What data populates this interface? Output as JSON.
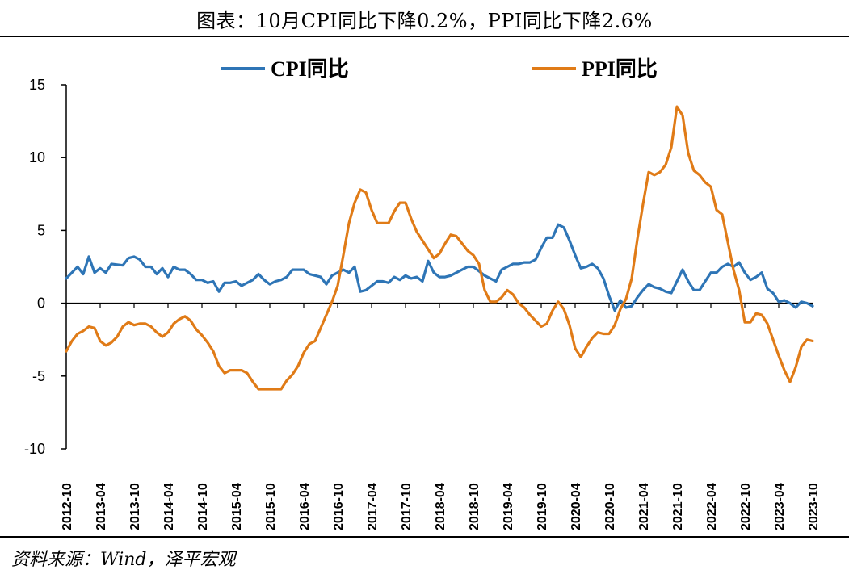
{
  "title": "图表：10月CPI同比下降0.2%，PPI同比下降2.6%",
  "source": "资料来源：Wind，泽平宏观",
  "colors": {
    "cpi": "#2e75b6",
    "ppi": "#e07b17"
  },
  "chart_data": {
    "type": "line",
    "title": "图表：10月CPI同比下降0.2%，PPI同比下降2.6%",
    "xlabel": "",
    "ylabel": "",
    "ylim": [
      -10,
      15
    ],
    "yticks": [
      15,
      10,
      5,
      0,
      -5,
      -10
    ],
    "grid": false,
    "legend": "top",
    "x_start": "2012-10",
    "x_end": "2023-10",
    "x_tick_labels": [
      "2012-10",
      "2013-04",
      "2013-10",
      "2014-04",
      "2014-10",
      "2015-04",
      "2015-10",
      "2016-04",
      "2016-10",
      "2017-04",
      "2017-10",
      "2018-04",
      "2018-10",
      "2019-04",
      "2019-10",
      "2020-04",
      "2020-10",
      "2021-04",
      "2021-10",
      "2022-04",
      "2022-10",
      "2023-04",
      "2023-10"
    ],
    "series": [
      {
        "name": "CPI同比",
        "color": "#2e75b6",
        "points": [
          [
            "2012-10",
            1.7
          ],
          [
            "2012-12",
            2.5
          ],
          [
            "2013-01",
            2.0
          ],
          [
            "2013-02",
            3.2
          ],
          [
            "2013-03",
            2.1
          ],
          [
            "2013-04",
            2.4
          ],
          [
            "2013-05",
            2.1
          ],
          [
            "2013-06",
            2.7
          ],
          [
            "2013-08",
            2.6
          ],
          [
            "2013-09",
            3.1
          ],
          [
            "2013-10",
            3.2
          ],
          [
            "2013-11",
            3.0
          ],
          [
            "2013-12",
            2.5
          ],
          [
            "2014-01",
            2.5
          ],
          [
            "2014-02",
            2.0
          ],
          [
            "2014-03",
            2.4
          ],
          [
            "2014-04",
            1.8
          ],
          [
            "2014-05",
            2.5
          ],
          [
            "2014-06",
            2.3
          ],
          [
            "2014-07",
            2.3
          ],
          [
            "2014-08",
            2.0
          ],
          [
            "2014-09",
            1.6
          ],
          [
            "2014-10",
            1.6
          ],
          [
            "2014-11",
            1.4
          ],
          [
            "2014-12",
            1.5
          ],
          [
            "2015-01",
            0.8
          ],
          [
            "2015-02",
            1.4
          ],
          [
            "2015-03",
            1.4
          ],
          [
            "2015-04",
            1.5
          ],
          [
            "2015-05",
            1.2
          ],
          [
            "2015-06",
            1.4
          ],
          [
            "2015-07",
            1.6
          ],
          [
            "2015-08",
            2.0
          ],
          [
            "2015-09",
            1.6
          ],
          [
            "2015-10",
            1.3
          ],
          [
            "2015-11",
            1.5
          ],
          [
            "2015-12",
            1.6
          ],
          [
            "2016-01",
            1.8
          ],
          [
            "2016-02",
            2.3
          ],
          [
            "2016-03",
            2.3
          ],
          [
            "2016-04",
            2.3
          ],
          [
            "2016-05",
            2.0
          ],
          [
            "2016-06",
            1.9
          ],
          [
            "2016-07",
            1.8
          ],
          [
            "2016-08",
            1.3
          ],
          [
            "2016-09",
            1.9
          ],
          [
            "2016-10",
            2.1
          ],
          [
            "2016-11",
            2.3
          ],
          [
            "2016-12",
            2.1
          ],
          [
            "2017-01",
            2.5
          ],
          [
            "2017-02",
            0.8
          ],
          [
            "2017-03",
            0.9
          ],
          [
            "2017-04",
            1.2
          ],
          [
            "2017-05",
            1.5
          ],
          [
            "2017-06",
            1.5
          ],
          [
            "2017-07",
            1.4
          ],
          [
            "2017-08",
            1.8
          ],
          [
            "2017-09",
            1.6
          ],
          [
            "2017-10",
            1.9
          ],
          [
            "2017-11",
            1.7
          ],
          [
            "2017-12",
            1.8
          ],
          [
            "2018-01",
            1.5
          ],
          [
            "2018-02",
            2.9
          ],
          [
            "2018-03",
            2.1
          ],
          [
            "2018-04",
            1.8
          ],
          [
            "2018-05",
            1.8
          ],
          [
            "2018-06",
            1.9
          ],
          [
            "2018-07",
            2.1
          ],
          [
            "2018-08",
            2.3
          ],
          [
            "2018-09",
            2.5
          ],
          [
            "2018-10",
            2.5
          ],
          [
            "2018-11",
            2.2
          ],
          [
            "2018-12",
            1.9
          ],
          [
            "2019-01",
            1.7
          ],
          [
            "2019-02",
            1.5
          ],
          [
            "2019-03",
            2.3
          ],
          [
            "2019-04",
            2.5
          ],
          [
            "2019-05",
            2.7
          ],
          [
            "2019-06",
            2.7
          ],
          [
            "2019-07",
            2.8
          ],
          [
            "2019-08",
            2.8
          ],
          [
            "2019-09",
            3.0
          ],
          [
            "2019-10",
            3.8
          ],
          [
            "2019-11",
            4.5
          ],
          [
            "2019-12",
            4.5
          ],
          [
            "2020-01",
            5.4
          ],
          [
            "2020-02",
            5.2
          ],
          [
            "2020-03",
            4.3
          ],
          [
            "2020-04",
            3.3
          ],
          [
            "2020-05",
            2.4
          ],
          [
            "2020-06",
            2.5
          ],
          [
            "2020-07",
            2.7
          ],
          [
            "2020-08",
            2.4
          ],
          [
            "2020-09",
            1.7
          ],
          [
            "2020-10",
            0.5
          ],
          [
            "2020-11",
            -0.5
          ],
          [
            "2020-12",
            0.2
          ],
          [
            "2021-01",
            -0.3
          ],
          [
            "2021-02",
            -0.2
          ],
          [
            "2021-03",
            0.4
          ],
          [
            "2021-04",
            0.9
          ],
          [
            "2021-05",
            1.3
          ],
          [
            "2021-06",
            1.1
          ],
          [
            "2021-07",
            1.0
          ],
          [
            "2021-08",
            0.8
          ],
          [
            "2021-09",
            0.7
          ],
          [
            "2021-10",
            1.5
          ],
          [
            "2021-11",
            2.3
          ],
          [
            "2021-12",
            1.5
          ],
          [
            "2022-01",
            0.9
          ],
          [
            "2022-02",
            0.9
          ],
          [
            "2022-03",
            1.5
          ],
          [
            "2022-04",
            2.1
          ],
          [
            "2022-05",
            2.1
          ],
          [
            "2022-06",
            2.5
          ],
          [
            "2022-07",
            2.7
          ],
          [
            "2022-08",
            2.5
          ],
          [
            "2022-09",
            2.8
          ],
          [
            "2022-10",
            2.1
          ],
          [
            "2022-11",
            1.6
          ],
          [
            "2022-12",
            1.8
          ],
          [
            "2023-01",
            2.1
          ],
          [
            "2023-02",
            1.0
          ],
          [
            "2023-03",
            0.7
          ],
          [
            "2023-04",
            0.1
          ],
          [
            "2023-05",
            0.2
          ],
          [
            "2023-06",
            0.0
          ],
          [
            "2023-07",
            -0.3
          ],
          [
            "2023-08",
            0.1
          ],
          [
            "2023-09",
            0.0
          ],
          [
            "2023-10",
            -0.2
          ]
        ]
      },
      {
        "name": "PPI同比",
        "color": "#e07b17",
        "points": [
          [
            "2012-10",
            -3.3
          ],
          [
            "2012-11",
            -2.6
          ],
          [
            "2012-12",
            -2.1
          ],
          [
            "2013-01",
            -1.9
          ],
          [
            "2013-02",
            -1.6
          ],
          [
            "2013-03",
            -1.7
          ],
          [
            "2013-04",
            -2.6
          ],
          [
            "2013-05",
            -2.9
          ],
          [
            "2013-06",
            -2.7
          ],
          [
            "2013-07",
            -2.3
          ],
          [
            "2013-08",
            -1.6
          ],
          [
            "2013-09",
            -1.3
          ],
          [
            "2013-10",
            -1.5
          ],
          [
            "2013-11",
            -1.4
          ],
          [
            "2013-12",
            -1.4
          ],
          [
            "2014-01",
            -1.6
          ],
          [
            "2014-02",
            -2.0
          ],
          [
            "2014-03",
            -2.3
          ],
          [
            "2014-04",
            -2.0
          ],
          [
            "2014-05",
            -1.4
          ],
          [
            "2014-06",
            -1.1
          ],
          [
            "2014-07",
            -0.9
          ],
          [
            "2014-08",
            -1.2
          ],
          [
            "2014-09",
            -1.8
          ],
          [
            "2014-10",
            -2.2
          ],
          [
            "2014-11",
            -2.7
          ],
          [
            "2014-12",
            -3.3
          ],
          [
            "2015-01",
            -4.3
          ],
          [
            "2015-02",
            -4.8
          ],
          [
            "2015-03",
            -4.6
          ],
          [
            "2015-04",
            -4.6
          ],
          [
            "2015-05",
            -4.6
          ],
          [
            "2015-06",
            -4.8
          ],
          [
            "2015-07",
            -5.4
          ],
          [
            "2015-08",
            -5.9
          ],
          [
            "2015-09",
            -5.9
          ],
          [
            "2015-10",
            -5.9
          ],
          [
            "2015-11",
            -5.9
          ],
          [
            "2015-12",
            -5.9
          ],
          [
            "2016-01",
            -5.3
          ],
          [
            "2016-02",
            -4.9
          ],
          [
            "2016-03",
            -4.3
          ],
          [
            "2016-04",
            -3.4
          ],
          [
            "2016-05",
            -2.8
          ],
          [
            "2016-06",
            -2.6
          ],
          [
            "2016-07",
            -1.7
          ],
          [
            "2016-08",
            -0.8
          ],
          [
            "2016-09",
            0.1
          ],
          [
            "2016-10",
            1.2
          ],
          [
            "2016-11",
            3.3
          ],
          [
            "2016-12",
            5.5
          ],
          [
            "2017-01",
            6.9
          ],
          [
            "2017-02",
            7.8
          ],
          [
            "2017-03",
            7.6
          ],
          [
            "2017-04",
            6.4
          ],
          [
            "2017-05",
            5.5
          ],
          [
            "2017-06",
            5.5
          ],
          [
            "2017-07",
            5.5
          ],
          [
            "2017-08",
            6.3
          ],
          [
            "2017-09",
            6.9
          ],
          [
            "2017-10",
            6.9
          ],
          [
            "2017-11",
            5.8
          ],
          [
            "2017-12",
            4.9
          ],
          [
            "2018-01",
            4.3
          ],
          [
            "2018-02",
            3.7
          ],
          [
            "2018-03",
            3.1
          ],
          [
            "2018-04",
            3.4
          ],
          [
            "2018-05",
            4.1
          ],
          [
            "2018-06",
            4.7
          ],
          [
            "2018-07",
            4.6
          ],
          [
            "2018-08",
            4.1
          ],
          [
            "2018-09",
            3.6
          ],
          [
            "2018-10",
            3.3
          ],
          [
            "2018-11",
            2.7
          ],
          [
            "2018-12",
            0.9
          ],
          [
            "2019-01",
            0.1
          ],
          [
            "2019-02",
            0.1
          ],
          [
            "2019-03",
            0.4
          ],
          [
            "2019-04",
            0.9
          ],
          [
            "2019-05",
            0.6
          ],
          [
            "2019-06",
            0.0
          ],
          [
            "2019-07",
            -0.3
          ],
          [
            "2019-08",
            -0.8
          ],
          [
            "2019-09",
            -1.2
          ],
          [
            "2019-10",
            -1.6
          ],
          [
            "2019-11",
            -1.4
          ],
          [
            "2019-12",
            -0.5
          ],
          [
            "2020-01",
            0.1
          ],
          [
            "2020-02",
            -0.4
          ],
          [
            "2020-03",
            -1.5
          ],
          [
            "2020-04",
            -3.1
          ],
          [
            "2020-05",
            -3.7
          ],
          [
            "2020-06",
            -3.0
          ],
          [
            "2020-07",
            -2.4
          ],
          [
            "2020-08",
            -2.0
          ],
          [
            "2020-09",
            -2.1
          ],
          [
            "2020-10",
            -2.1
          ],
          [
            "2020-11",
            -1.5
          ],
          [
            "2020-12",
            -0.4
          ],
          [
            "2021-01",
            0.3
          ],
          [
            "2021-02",
            1.7
          ],
          [
            "2021-03",
            4.4
          ],
          [
            "2021-04",
            6.8
          ],
          [
            "2021-05",
            9.0
          ],
          [
            "2021-06",
            8.8
          ],
          [
            "2021-07",
            9.0
          ],
          [
            "2021-08",
            9.5
          ],
          [
            "2021-09",
            10.7
          ],
          [
            "2021-10",
            13.5
          ],
          [
            "2021-11",
            12.9
          ],
          [
            "2021-12",
            10.3
          ],
          [
            "2022-01",
            9.1
          ],
          [
            "2022-02",
            8.8
          ],
          [
            "2022-03",
            8.3
          ],
          [
            "2022-04",
            8.0
          ],
          [
            "2022-05",
            6.4
          ],
          [
            "2022-06",
            6.1
          ],
          [
            "2022-07",
            4.2
          ],
          [
            "2022-08",
            2.3
          ],
          [
            "2022-09",
            0.9
          ],
          [
            "2022-10",
            -1.3
          ],
          [
            "2022-11",
            -1.3
          ],
          [
            "2022-12",
            -0.7
          ],
          [
            "2023-01",
            -0.8
          ],
          [
            "2023-02",
            -1.4
          ],
          [
            "2023-03",
            -2.5
          ],
          [
            "2023-04",
            -3.6
          ],
          [
            "2023-05",
            -4.6
          ],
          [
            "2023-06",
            -5.4
          ],
          [
            "2023-07",
            -4.4
          ],
          [
            "2023-08",
            -3.0
          ],
          [
            "2023-09",
            -2.5
          ],
          [
            "2023-10",
            -2.6
          ]
        ]
      }
    ]
  }
}
